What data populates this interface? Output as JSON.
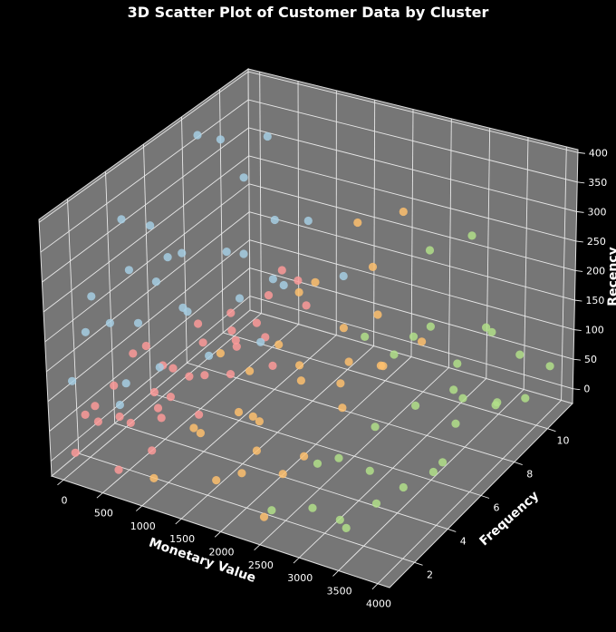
{
  "chart_data": {
    "type": "scatter",
    "projection": "3d",
    "title": "3D Scatter Plot of Customer Data by Cluster",
    "xlabel": "Monetary Value",
    "ylabel": "Frequency",
    "zlabel": "Recency",
    "xlim": [
      -150,
      4150
    ],
    "ylim": [
      0.5,
      11.5
    ],
    "zlim": [
      -25,
      405
    ],
    "xticks": [
      0,
      500,
      1000,
      1500,
      2000,
      2500,
      3000,
      3500,
      4000
    ],
    "yticks": [
      2,
      4,
      6,
      8,
      10
    ],
    "zticks": [
      0,
      50,
      100,
      150,
      200,
      250,
      300,
      350,
      400
    ],
    "grid": true,
    "background": "#000000",
    "pane_color": "#767676",
    "series": [
      {
        "color": "#fb9a99",
        "points": [
          [
            50,
            1,
            10
          ],
          [
            120,
            2,
            40
          ],
          [
            200,
            1,
            80
          ],
          [
            300,
            3,
            20
          ],
          [
            400,
            2,
            60
          ],
          [
            500,
            4,
            100
          ],
          [
            600,
            1,
            5
          ],
          [
            700,
            3,
            45
          ],
          [
            800,
            5,
            70
          ],
          [
            900,
            2,
            95
          ],
          [
            150,
            6,
            30
          ],
          [
            250,
            7,
            85
          ],
          [
            350,
            5,
            15
          ],
          [
            450,
            8,
            55
          ],
          [
            550,
            6,
            90
          ],
          [
            650,
            9,
            25
          ],
          [
            750,
            7,
            65
          ],
          [
            850,
            10,
            105
          ],
          [
            950,
            4,
            35
          ],
          [
            100,
            3,
            75
          ],
          [
            200,
            9,
            50
          ],
          [
            300,
            10,
            10
          ],
          [
            400,
            11,
            80
          ],
          [
            500,
            8,
            40
          ],
          [
            600,
            5,
            60
          ],
          [
            700,
            9,
            100
          ],
          [
            800,
            2,
            20
          ],
          [
            900,
            6,
            50
          ],
          [
            50,
            5,
            90
          ],
          [
            980,
            8,
            15
          ],
          [
            120,
            4,
            105
          ],
          [
            330,
            1,
            100
          ],
          [
            620,
            3,
            85
          ],
          [
            720,
            11,
            30
          ]
        ]
      },
      {
        "color": "#a6cee3",
        "points": [
          [
            50,
            1,
            130
          ],
          [
            80,
            3,
            180
          ],
          [
            100,
            2,
            250
          ],
          [
            150,
            5,
            300
          ],
          [
            60,
            7,
            200
          ],
          [
            200,
            4,
            160
          ],
          [
            250,
            1,
            220
          ],
          [
            300,
            6,
            140
          ],
          [
            350,
            3,
            280
          ],
          [
            100,
            9,
            350
          ],
          [
            400,
            8,
            190
          ],
          [
            500,
            2,
            120
          ],
          [
            600,
            5,
            170
          ],
          [
            700,
            3,
            130
          ],
          [
            800,
            7,
            150
          ],
          [
            900,
            9,
            125
          ],
          [
            1100,
            4,
            140
          ],
          [
            1300,
            6,
            120
          ],
          [
            1450,
            10,
            135
          ],
          [
            150,
            10,
            260
          ],
          [
            220,
            11,
            310
          ],
          [
            50,
            8,
            380
          ],
          [
            120,
            6,
            220
          ],
          [
            450,
            4,
            240
          ],
          [
            550,
            10,
            200
          ],
          [
            650,
            1,
            115
          ],
          [
            380,
            9,
            160
          ],
          [
            30,
            4,
            330
          ],
          [
            750,
            11,
            180
          ],
          [
            1000,
            8,
            165
          ]
        ]
      },
      {
        "color": "#fdbf6f",
        "points": [
          [
            1050,
            1,
            10
          ],
          [
            1200,
            3,
            40
          ],
          [
            1350,
            2,
            80
          ],
          [
            1500,
            5,
            20
          ],
          [
            1650,
            4,
            60
          ],
          [
            1800,
            6,
            100
          ],
          [
            1950,
            2,
            30
          ],
          [
            2100,
            7,
            55
          ],
          [
            2250,
            3,
            15
          ],
          [
            2400,
            8,
            70
          ],
          [
            1100,
            9,
            120
          ],
          [
            1300,
            7,
            90
          ],
          [
            1450,
            10,
            45
          ],
          [
            1600,
            11,
            130
          ],
          [
            1750,
            9,
            25
          ],
          [
            1900,
            10,
            85
          ],
          [
            2050,
            5,
            110
          ],
          [
            2200,
            9,
            35
          ],
          [
            2350,
            6,
            50
          ],
          [
            2450,
            1,
            5
          ],
          [
            1250,
            4,
            150
          ],
          [
            1550,
            8,
            180
          ],
          [
            1700,
            3,
            95
          ],
          [
            2000,
            11,
            240
          ],
          [
            2300,
            4,
            20
          ],
          [
            2480,
            10,
            60
          ],
          [
            1150,
            6,
            65
          ],
          [
            1850,
            1,
            40
          ],
          [
            2150,
            2,
            75
          ],
          [
            1400,
            11,
            200
          ]
        ]
      },
      {
        "color": "#b2df8a",
        "points": [
          [
            2550,
            1,
            20
          ],
          [
            2700,
            3,
            50
          ],
          [
            2850,
            2,
            10
          ],
          [
            3000,
            5,
            70
          ],
          [
            3150,
            4,
            30
          ],
          [
            3300,
            6,
            90
          ],
          [
            3450,
            3,
            15
          ],
          [
            3600,
            7,
            45
          ],
          [
            3750,
            5,
            25
          ],
          [
            3900,
            8,
            60
          ],
          [
            2600,
            9,
            100
          ],
          [
            2800,
            7,
            130
          ],
          [
            2950,
            10,
            40
          ],
          [
            3100,
            11,
            80
          ],
          [
            3250,
            9,
            20
          ],
          [
            3400,
            10,
            110
          ],
          [
            3550,
            11,
            50
          ],
          [
            3700,
            9,
            30
          ],
          [
            3850,
            10,
            15
          ],
          [
            3950,
            11,
            45
          ],
          [
            2650,
            6,
            180
          ],
          [
            2900,
            11,
            230
          ],
          [
            3050,
            8,
            160
          ],
          [
            3200,
            2,
            5
          ],
          [
            3500,
            1,
            30
          ],
          [
            2750,
            4,
            35
          ],
          [
            3350,
            8,
            65
          ],
          [
            3650,
            6,
            10
          ],
          [
            2580,
            10,
            220
          ],
          [
            3800,
            3,
            55
          ]
        ]
      }
    ]
  }
}
